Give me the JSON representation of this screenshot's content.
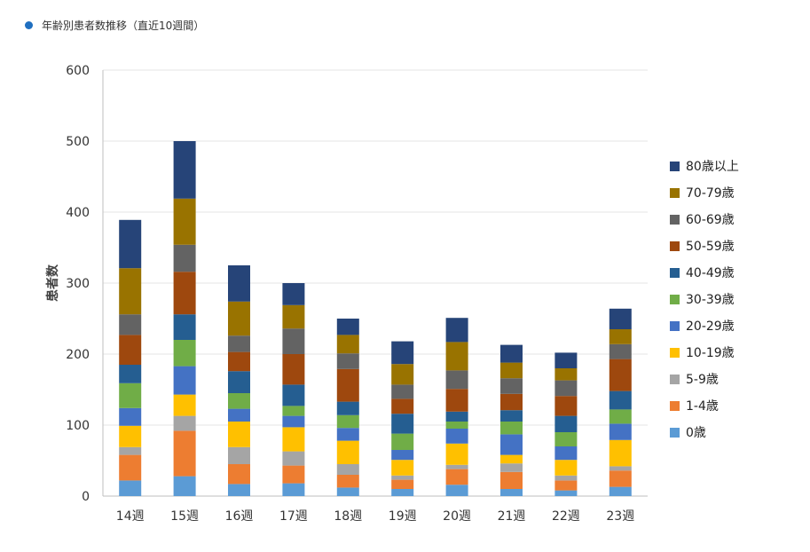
{
  "header": {
    "title": "年齢別患者数推移（直近10週間）"
  },
  "chart_data": {
    "type": "bar",
    "stacked": true,
    "categories": [
      "14週",
      "15週",
      "16週",
      "17週",
      "18週",
      "19週",
      "20週",
      "21週",
      "22週",
      "23週"
    ],
    "ylabel": "患者数",
    "xlabel": "",
    "ylim": [
      0,
      600
    ],
    "yticks": [
      0,
      100,
      200,
      300,
      400,
      500,
      600
    ],
    "grid": true,
    "legend_position": "right",
    "series": [
      {
        "name": "0歳",
        "color": "#5b9bd5",
        "values": [
          22,
          28,
          17,
          18,
          12,
          10,
          16,
          10,
          8,
          13
        ]
      },
      {
        "name": "1-4歳",
        "color": "#ed7d31",
        "values": [
          36,
          64,
          28,
          25,
          18,
          13,
          22,
          24,
          14,
          23
        ]
      },
      {
        "name": "5-9歳",
        "color": "#a5a5a5",
        "values": [
          11,
          21,
          24,
          20,
          15,
          6,
          6,
          12,
          7,
          6
        ]
      },
      {
        "name": "10-19歳",
        "color": "#ffc000",
        "values": [
          30,
          30,
          36,
          34,
          33,
          22,
          30,
          12,
          22,
          37
        ]
      },
      {
        "name": "20-29歳",
        "color": "#4472c4",
        "values": [
          25,
          40,
          18,
          16,
          18,
          14,
          21,
          29,
          19,
          23
        ]
      },
      {
        "name": "30-39歳",
        "color": "#70ad47",
        "values": [
          35,
          37,
          22,
          14,
          18,
          23,
          10,
          18,
          20,
          20
        ]
      },
      {
        "name": "40-49歳",
        "color": "#255e91",
        "values": [
          26,
          36,
          31,
          30,
          19,
          28,
          14,
          16,
          23,
          26
        ]
      },
      {
        "name": "50-59歳",
        "color": "#9e480e",
        "values": [
          42,
          60,
          27,
          43,
          46,
          21,
          32,
          23,
          28,
          45
        ]
      },
      {
        "name": "60-69歳",
        "color": "#636363",
        "values": [
          29,
          38,
          23,
          36,
          22,
          20,
          26,
          22,
          22,
          21
        ]
      },
      {
        "name": "70-79歳",
        "color": "#997300",
        "values": [
          65,
          65,
          48,
          33,
          26,
          29,
          40,
          22,
          17,
          21
        ]
      },
      {
        "name": "80歳以上",
        "color": "#264478",
        "values": [
          68,
          81,
          51,
          31,
          23,
          32,
          34,
          25,
          22,
          29
        ]
      }
    ]
  }
}
